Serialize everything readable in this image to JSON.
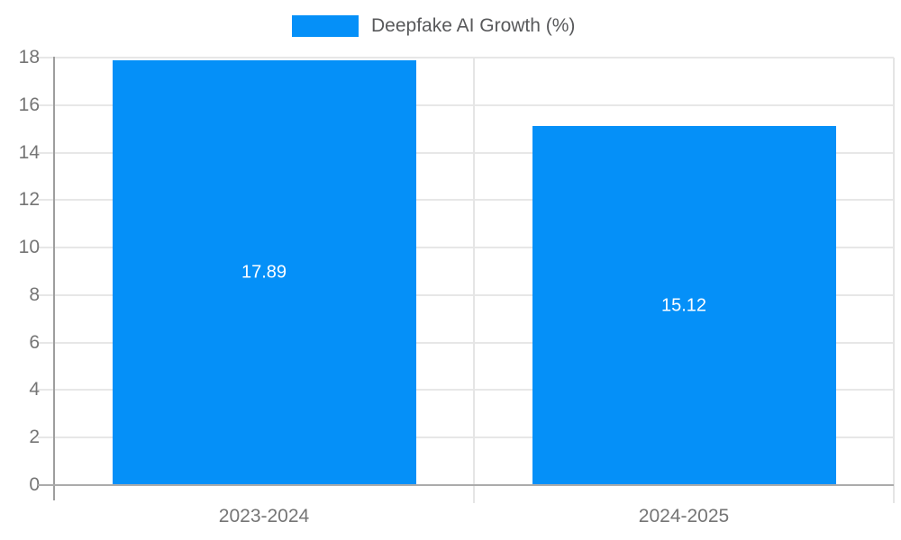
{
  "chart_data": {
    "type": "bar",
    "title": "",
    "legend": {
      "label": "Deepfake AI Growth (%)",
      "position": "top"
    },
    "categories": [
      "2023-2024",
      "2024-2025"
    ],
    "series": [
      {
        "name": "Deepfake AI Growth (%)",
        "values": [
          17.89,
          15.12
        ]
      }
    ],
    "value_labels": [
      "17.89",
      "15.12"
    ],
    "xlabel": "",
    "ylabel": "",
    "y_axis": {
      "min": 0,
      "max": 18,
      "tick_step": 2,
      "tick_labels": [
        "0",
        "2",
        "4",
        "6",
        "8",
        "10",
        "12",
        "14",
        "16",
        "18"
      ]
    },
    "grid": true,
    "colors": {
      "bar": "#0590f8",
      "legend_text": "#58595b",
      "tick_text": "#757575",
      "gridline": "#e7e7e7",
      "x_axis_line": "#ababab",
      "y_axis_line": "#9e9e9e",
      "background": "#ffffff",
      "bar_label_text": "#ffffff"
    }
  }
}
